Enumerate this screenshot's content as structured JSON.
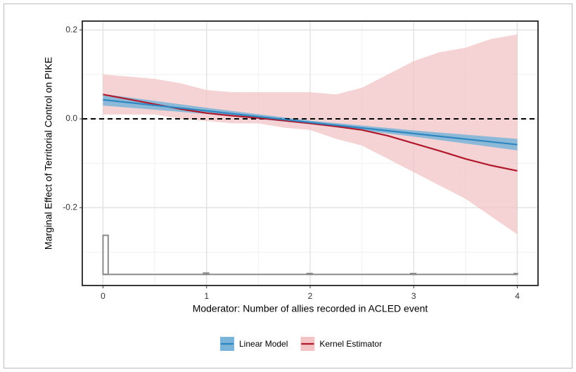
{
  "chart_data": {
    "type": "line",
    "x_label": "Moderator: Number of allies recorded in ACLED event",
    "y_label": "Marginal Effect of Territorial Control on PIKE",
    "xlim": [
      -0.2,
      4.2
    ],
    "ylim": [
      -0.375,
      0.22
    ],
    "xticks": [
      0,
      1,
      2,
      3,
      4
    ],
    "yticks": [
      0.2,
      {
        "value": 0,
        "label": "0.0"
      },
      -0.2
    ],
    "minor_xticks": [
      0.5,
      1.5,
      2.5,
      3.5
    ],
    "minor_yticks": [
      0.1,
      -0.1,
      -0.3
    ],
    "grid": true,
    "hline": 0,
    "series": [
      {
        "name": "Kernel Estimator",
        "color": "#b2182b",
        "fill": "#f2c4c6",
        "x": [
          0,
          0.25,
          0.5,
          0.75,
          1,
          1.25,
          1.5,
          1.75,
          2,
          2.25,
          2.5,
          2.75,
          3,
          3.25,
          3.5,
          3.75,
          4
        ],
        "values": [
          0.055,
          0.044,
          0.033,
          0.022,
          0.013,
          0.007,
          0.002,
          -0.004,
          -0.01,
          -0.017,
          -0.025,
          -0.038,
          -0.055,
          -0.072,
          -0.09,
          -0.105,
          -0.117
        ],
        "upper": [
          0.1,
          0.095,
          0.09,
          0.08,
          0.065,
          0.06,
          0.06,
          0.06,
          0.06,
          0.055,
          0.07,
          0.1,
          0.13,
          0.15,
          0.16,
          0.18,
          0.19
        ],
        "lower": [
          0.01,
          0.01,
          0.01,
          0.0,
          -0.005,
          -0.01,
          -0.01,
          -0.02,
          -0.025,
          -0.045,
          -0.06,
          -0.09,
          -0.12,
          -0.15,
          -0.18,
          -0.22,
          -0.26
        ]
      },
      {
        "name": "Linear Model",
        "color": "#2f86c0",
        "fill": "#7ab4d8",
        "x": [
          0,
          1,
          2,
          3,
          4
        ],
        "values": [
          0.043,
          0.018,
          -0.008,
          -0.033,
          -0.058
        ],
        "upper": [
          0.056,
          0.025,
          -0.004,
          -0.026,
          -0.045
        ],
        "lower": [
          0.03,
          0.011,
          -0.012,
          -0.04,
          -0.071
        ]
      }
    ],
    "histogram": {
      "color": "#8c8c8c",
      "base": -0.35,
      "x0": [
        0,
        0.97,
        1.97,
        2.97,
        3.97
      ],
      "x1": [
        0.05,
        1.02,
        2.02,
        3.02,
        4.0
      ],
      "top": [
        -0.262,
        -0.347,
        -0.348,
        -0.348,
        -0.348
      ]
    }
  }
}
